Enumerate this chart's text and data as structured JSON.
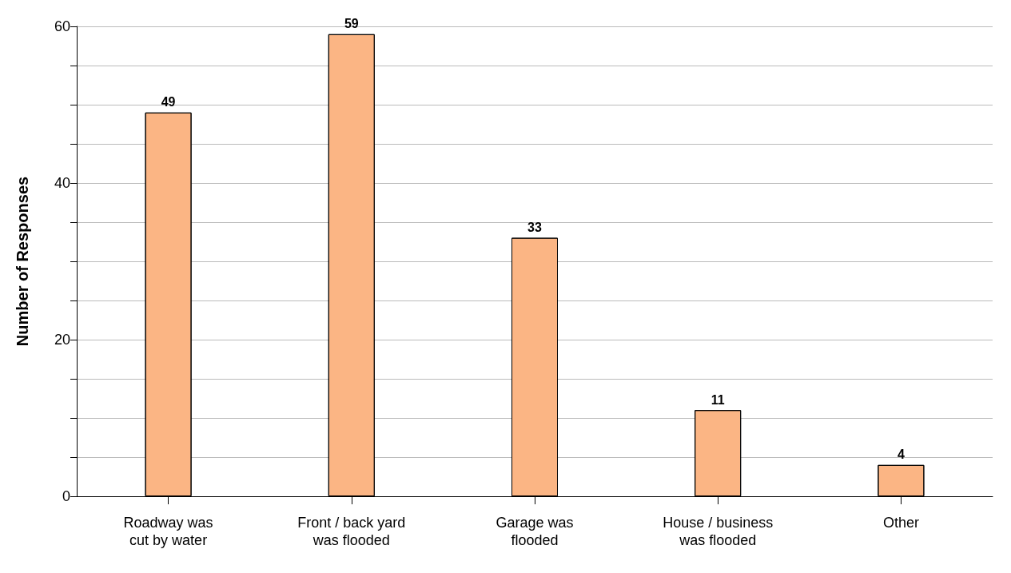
{
  "chart_data": {
    "type": "bar",
    "ylabel": "Number of Responses",
    "categories": [
      "Roadway was\ncut by water",
      "Front / back yard\nwas flooded",
      "Garage was\nflooded",
      "House / business\nwas flooded",
      "Other"
    ],
    "values": [
      49,
      59,
      33,
      11,
      4
    ],
    "color": "#fbb584",
    "ylim": [
      0,
      60
    ],
    "yticks": [
      0,
      {
        "value": 5,
        "label": null
      },
      {
        "value": 10,
        "label": null
      },
      {
        "value": 15,
        "label": null
      },
      20,
      {
        "value": 25,
        "label": null
      },
      {
        "value": 30,
        "label": null
      },
      {
        "value": 35,
        "label": null
      },
      40,
      {
        "value": 45,
        "label": null
      },
      {
        "value": 50,
        "label": null
      },
      {
        "value": 55,
        "label": null
      },
      60
    ],
    "grid": "y",
    "data_labels": true
  }
}
